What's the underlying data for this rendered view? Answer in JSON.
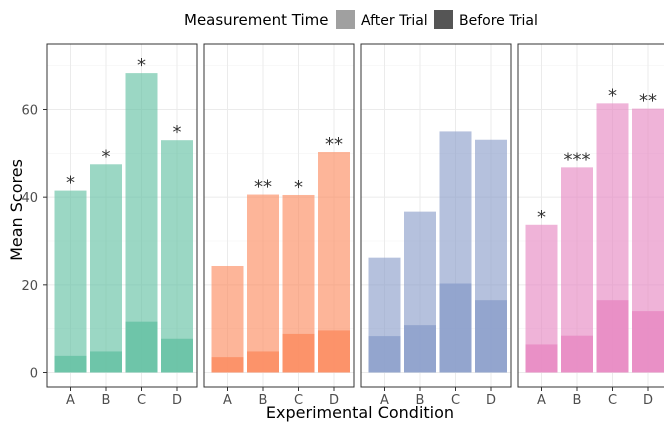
{
  "chart_data": {
    "type": "bar",
    "title": "",
    "xlabel": "Experimental Condition",
    "ylabel": "Mean Scores",
    "ylim": [
      0,
      70
    ],
    "yticks": [
      0,
      20,
      40,
      60
    ],
    "grid": true,
    "legend": {
      "title": "Measurement Time",
      "position": "top",
      "entries": [
        {
          "label": "After Trial",
          "swatch": "#a0a0a0"
        },
        {
          "label": "Before Trial",
          "swatch": "#555555"
        }
      ]
    },
    "categories": [
      "A",
      "B",
      "C",
      "D"
    ],
    "panels": [
      {
        "color": "#66c2a5",
        "after": [
          41.5,
          47.5,
          68.3,
          53
        ],
        "before": [
          3.8,
          4.8,
          11.6,
          7.7
        ],
        "significance": [
          "*",
          "*",
          "*",
          "*"
        ]
      },
      {
        "color": "#fc8d62",
        "after": [
          24.3,
          40.6,
          40.5,
          50.3
        ],
        "before": [
          3.5,
          4.8,
          8.8,
          9.6
        ],
        "significance": [
          "",
          "**",
          "*",
          "**"
        ]
      },
      {
        "color": "#8da0cb",
        "after": [
          26.2,
          36.7,
          55,
          53.1
        ],
        "before": [
          8.3,
          10.8,
          20.3,
          16.5
        ],
        "significance": [
          "",
          "",
          "",
          ""
        ]
      },
      {
        "color": "#e78ac3",
        "after": [
          33.7,
          46.8,
          61.4,
          60.2
        ],
        "before": [
          6.4,
          8.4,
          16.5,
          14
        ],
        "significance": [
          "*",
          "***",
          "*",
          "**"
        ]
      }
    ]
  }
}
